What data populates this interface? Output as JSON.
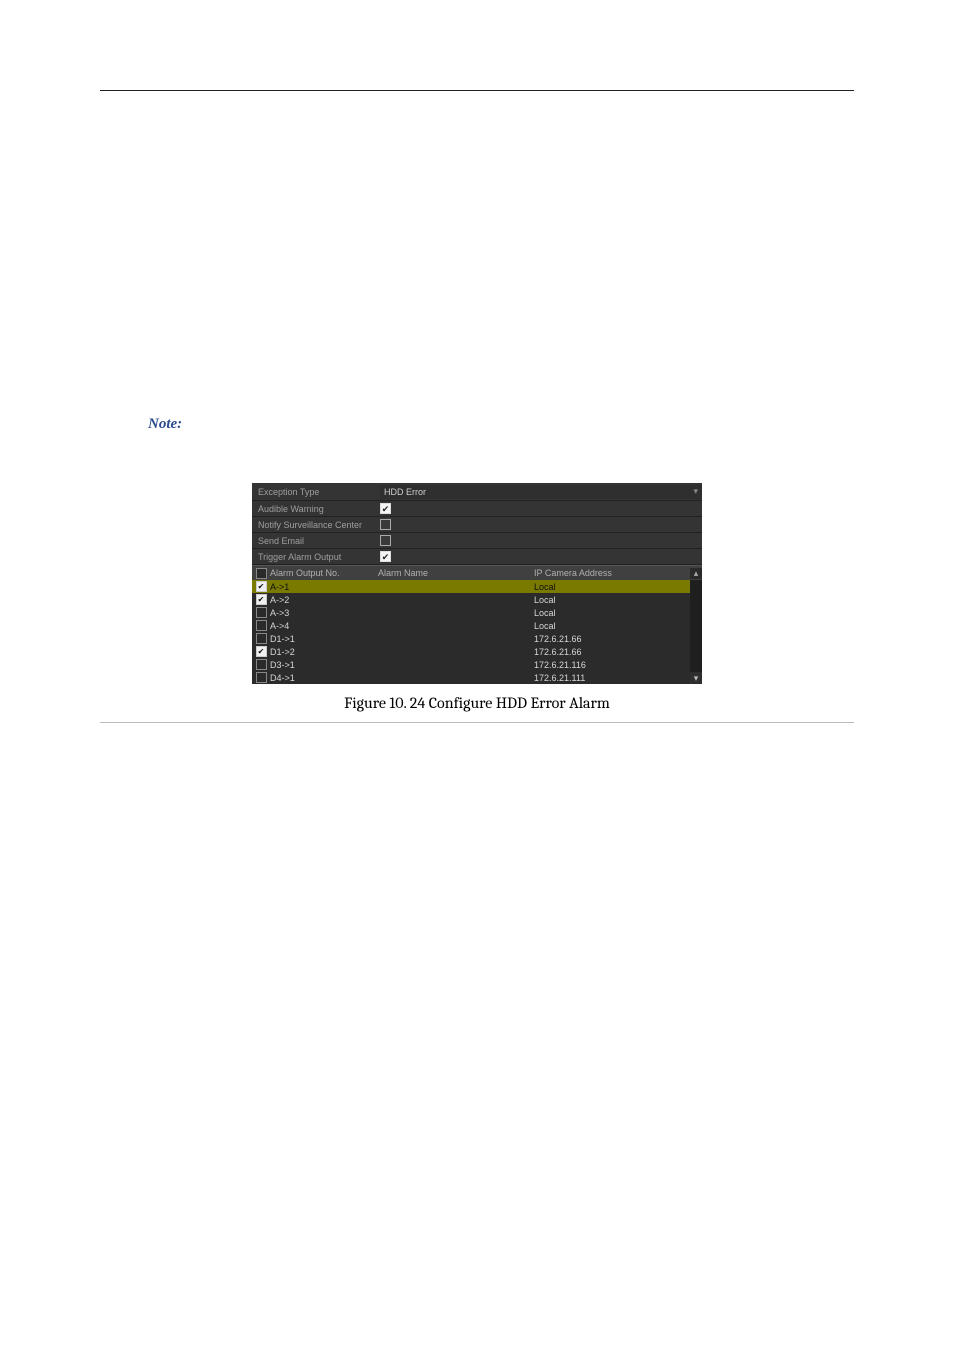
{
  "note_label": "Note:",
  "figure_caption": "Figure 10. 24 Configure HDD Error Alarm",
  "screenshot": {
    "background_color": "#2a2a2a",
    "text_color": "#c0c0c0",
    "highlight_color": "#7a7a00",
    "fields": {
      "exception_type": {
        "label": "Exception Type",
        "value": "HDD Error"
      },
      "audible_warning": {
        "label": "Audible Warning",
        "checked": true
      },
      "notify_center": {
        "label": "Notify Surveillance Center",
        "checked": false
      },
      "send_email": {
        "label": "Send Email",
        "checked": false
      },
      "trigger_alarm": {
        "label": "Trigger Alarm Output",
        "checked": true
      }
    },
    "table": {
      "columns": {
        "no": "Alarm Output No.",
        "name": "Alarm Name",
        "ip": "IP Camera Address"
      },
      "rows": [
        {
          "checked": true,
          "no": "A->1",
          "name": "",
          "ip": "Local",
          "highlight": true
        },
        {
          "checked": true,
          "no": "A->2",
          "name": "",
          "ip": "Local",
          "highlight": false
        },
        {
          "checked": false,
          "no": "A->3",
          "name": "",
          "ip": "Local",
          "highlight": false
        },
        {
          "checked": false,
          "no": "A->4",
          "name": "",
          "ip": "Local",
          "highlight": false
        },
        {
          "checked": false,
          "no": "D1->1",
          "name": "",
          "ip": "172.6.21.66",
          "highlight": false
        },
        {
          "checked": true,
          "no": "D1->2",
          "name": "",
          "ip": "172.6.21.66",
          "highlight": false
        },
        {
          "checked": false,
          "no": "D3->1",
          "name": "",
          "ip": "172.6.21.116",
          "highlight": false
        },
        {
          "checked": false,
          "no": "D4->1",
          "name": "",
          "ip": "172.6.21.111",
          "highlight": false
        }
      ]
    }
  }
}
